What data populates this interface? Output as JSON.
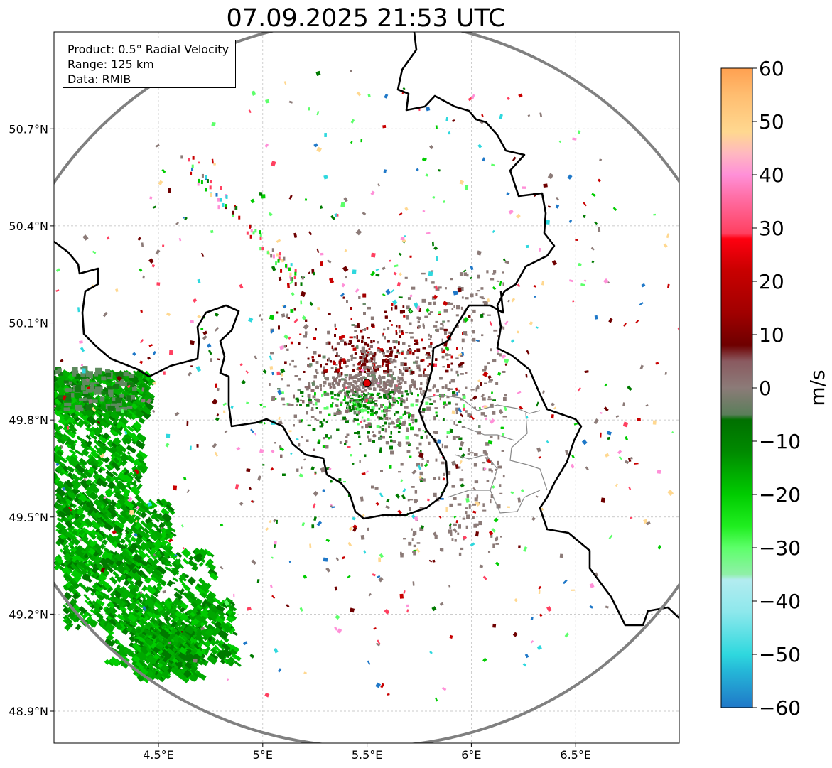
{
  "map": {
    "title": "07.09.2025 21:53 UTC",
    "info": {
      "product": "Product: 0.5° Radial Velocity",
      "range": "Range: 125 km",
      "data": "Data: RMIB"
    },
    "radar_site": {
      "lon": 5.5,
      "lat": 49.914
    },
    "range_km": 125,
    "extent": {
      "lon": [
        4.0,
        7.0
      ],
      "lat": [
        48.8,
        51.0
      ]
    },
    "lon_ticks": [
      {
        "value": 4.5,
        "label": "4.5°E"
      },
      {
        "value": 5.0,
        "label": "5°E"
      },
      {
        "value": 5.5,
        "label": "5.5°E"
      },
      {
        "value": 6.0,
        "label": "6°E"
      },
      {
        "value": 6.5,
        "label": "6.5°E"
      }
    ],
    "lat_ticks": [
      {
        "value": 48.9,
        "label": "48.9°N"
      },
      {
        "value": 49.2,
        "label": "49.2°N"
      },
      {
        "value": 49.5,
        "label": "49.5°N"
      },
      {
        "value": 49.8,
        "label": "49.8°N"
      },
      {
        "value": 50.1,
        "label": "50.1°N"
      },
      {
        "value": 50.4,
        "label": "50.4°N"
      },
      {
        "value": 50.7,
        "label": "50.7°N"
      }
    ],
    "colorbar": {
      "unit": "m/s",
      "min": -60,
      "max": 60,
      "ticks": [
        {
          "value": 60,
          "label": "60"
        },
        {
          "value": 50,
          "label": "50"
        },
        {
          "value": 40,
          "label": "40"
        },
        {
          "value": 30,
          "label": "30"
        },
        {
          "value": 20,
          "label": "20"
        },
        {
          "value": 10,
          "label": "10"
        },
        {
          "value": 0,
          "label": "0"
        },
        {
          "value": -10,
          "label": "−10"
        },
        {
          "value": -20,
          "label": "−20"
        },
        {
          "value": -30,
          "label": "−30"
        },
        {
          "value": -40,
          "label": "−40"
        },
        {
          "value": -50,
          "label": "−50"
        },
        {
          "value": -60,
          "label": "−60"
        }
      ],
      "colors": {
        "v_neg60": "#1f78c8",
        "v_neg50": "#2fd8de",
        "v_neg40": "#b3ecf0",
        "v_neg30": "#5dff6a",
        "v_neg20": "#00cc00",
        "v_neg10": "#007000",
        "v_0": "#8c7b78",
        "v_10": "#6e0000",
        "v_20": "#c80000",
        "v_30": "#ff4060",
        "v_40": "#ff90d8",
        "v_50": "#ffd890",
        "v_60": "#ffa050"
      }
    }
  }
}
